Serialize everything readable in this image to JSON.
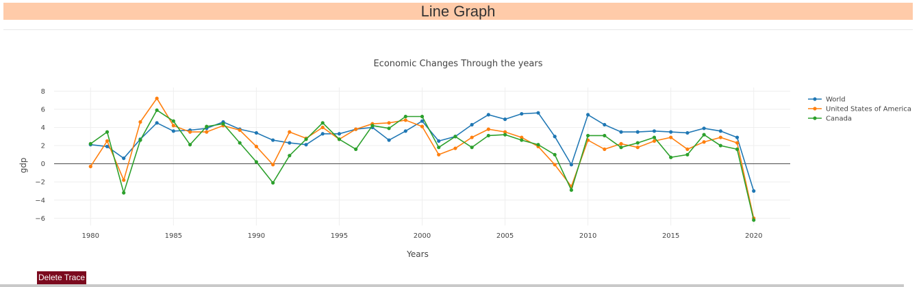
{
  "header": {
    "title": "Line Graph"
  },
  "controls": {
    "delete_label": "Delete Trace"
  },
  "chart_data": {
    "type": "line",
    "title": "Economic Changes Through the years",
    "xlabel": "Years",
    "ylabel": "gdp",
    "xlim": [
      1977.8,
      2022.2
    ],
    "ylim": [
      -6.8,
      8.4
    ],
    "xticks": [
      1980,
      1985,
      1990,
      1995,
      2000,
      2005,
      2010,
      2015,
      2020
    ],
    "yticks": [
      -6,
      -4,
      -2,
      0,
      2,
      4,
      6,
      8
    ],
    "ytick_labels": [
      "−6",
      "−4",
      "−2",
      "0",
      "2",
      "4",
      "6",
      "8"
    ],
    "grid": true,
    "legend_position": "top-right",
    "x": [
      1980,
      1981,
      1982,
      1983,
      1984,
      1985,
      1986,
      1987,
      1988,
      1989,
      1990,
      1991,
      1992,
      1993,
      1994,
      1995,
      1996,
      1997,
      1998,
      1999,
      2000,
      2001,
      2002,
      2003,
      2004,
      2005,
      2006,
      2007,
      2008,
      2009,
      2010,
      2011,
      2012,
      2013,
      2014,
      2015,
      2016,
      2017,
      2018,
      2019,
      2020
    ],
    "series": [
      {
        "name": "World",
        "color": "#1f77b4",
        "values": [
          2.1,
          1.9,
          0.6,
          2.7,
          4.5,
          3.6,
          3.7,
          3.9,
          4.6,
          3.8,
          3.4,
          2.6,
          2.3,
          2.1,
          3.3,
          3.3,
          3.8,
          4.0,
          2.6,
          3.6,
          4.7,
          2.5,
          3.0,
          4.3,
          5.4,
          4.9,
          5.5,
          5.6,
          3.0,
          -0.1,
          5.4,
          4.3,
          3.5,
          3.5,
          3.6,
          3.5,
          3.4,
          3.9,
          3.6,
          2.9,
          -3.0
        ]
      },
      {
        "name": "United States of America",
        "color": "#ff7f0e",
        "values": [
          -0.3,
          2.5,
          -1.8,
          4.6,
          7.2,
          4.2,
          3.5,
          3.5,
          4.2,
          3.7,
          1.9,
          -0.1,
          3.5,
          2.8,
          4.0,
          2.7,
          3.8,
          4.4,
          4.5,
          4.8,
          4.1,
          1.0,
          1.7,
          2.9,
          3.8,
          3.5,
          2.9,
          1.9,
          -0.1,
          -2.5,
          2.6,
          1.6,
          2.2,
          1.8,
          2.5,
          2.9,
          1.6,
          2.4,
          2.9,
          2.3,
          -6.0
        ]
      },
      {
        "name": "Canada",
        "color": "#2ca02c",
        "values": [
          2.2,
          3.5,
          -3.2,
          2.6,
          5.9,
          4.7,
          2.1,
          4.1,
          4.4,
          2.3,
          0.2,
          -2.1,
          0.9,
          2.7,
          4.5,
          2.7,
          1.6,
          4.2,
          3.9,
          5.2,
          5.2,
          1.8,
          3.0,
          1.8,
          3.1,
          3.2,
          2.6,
          2.1,
          1.0,
          -2.9,
          3.1,
          3.1,
          1.8,
          2.3,
          2.9,
          0.7,
          1.0,
          3.2,
          2.0,
          1.6,
          -6.2
        ]
      }
    ]
  }
}
